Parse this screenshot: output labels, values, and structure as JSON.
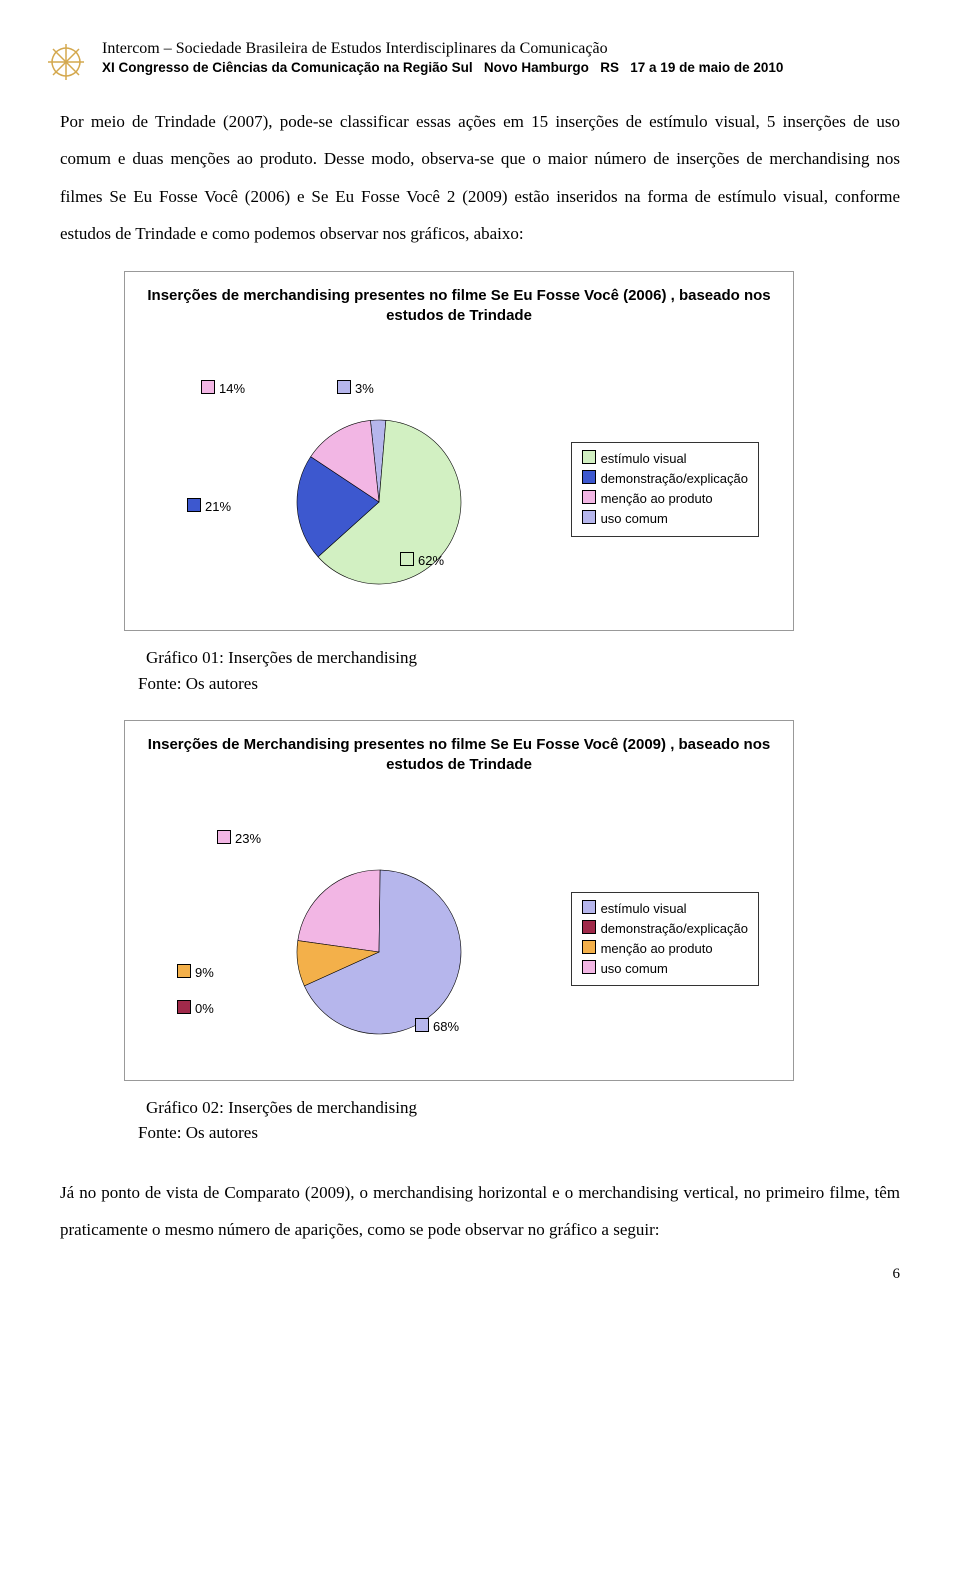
{
  "header": {
    "line1": "Intercom – Sociedade Brasileira de Estudos Interdisciplinares da Comunicação",
    "line2_a": "XI Congresso de Ciências da Comunicação na Região Sul",
    "line2_b": "Novo Hamburgo",
    "line2_c": "RS",
    "line2_d": "17 a 19 de maio de 2010",
    "logo_color": "#d4a84e"
  },
  "para1": "Por meio de Trindade (2007), pode-se classificar essas ações em 15 inserções de estímulo visual, 5 inserções de uso comum e duas menções ao produto. Desse modo, observa-se que o maior número de inserções de merchandising nos filmes Se Eu Fosse Você (2006) e Se Eu Fosse Você 2 (2009) estão inseridos na forma de estímulo visual, conforme estudos de Trindade e como podemos observar nos gráficos, abaixo:",
  "chart1": {
    "title": "Inserções de merchandising presentes no filme Se Eu Fosse Você (2006) , baseado nos estudos de Trindade",
    "slices": [
      {
        "label": "62%",
        "value": 62,
        "color": "#d2f0c2",
        "legend": "estímulo visual"
      },
      {
        "label": "21%",
        "value": 21,
        "color": "#3d58cf",
        "legend": "demonstração/explicação"
      },
      {
        "label": "14%",
        "value": 14,
        "color": "#f2b6e4",
        "legend": "menção ao produto"
      },
      {
        "label": "3%",
        "value": 3,
        "color": "#b6b6ec",
        "legend": "uso comum"
      }
    ],
    "caption": "Gráfico 01: Inserções de merchandising",
    "source": "Fonte: Os autores"
  },
  "chart2": {
    "title": "Inserções de Merchandising presentes no filme Se Eu Fosse Você (2009) , baseado nos estudos de Trindade",
    "slices": [
      {
        "label": "68%",
        "value": 68,
        "color": "#b6b6ec",
        "legend": "estímulo visual"
      },
      {
        "label": "0%",
        "value": 0,
        "color": "#a02a4a",
        "legend": "demonstração/explicação"
      },
      {
        "label": "9%",
        "value": 9,
        "color": "#f3b04a",
        "legend": "menção ao produto"
      },
      {
        "label": "23%",
        "value": 23,
        "color": "#f2b6e4",
        "legend": "uso comum"
      }
    ],
    "caption": "Gráfico 02: Inserções de merchandising",
    "source": "Fonte: Os autores"
  },
  "para2": "Já no ponto de vista de Comparato (2009), o merchandising horizontal e o merchandising vertical, no primeiro filme, têm praticamente o mesmo número de aparições, como se pode observar no gráfico a seguir:",
  "page_number": "6",
  "style": {
    "chart_border_color": "#999999",
    "body_font_size": 17,
    "title_font_size": 15,
    "label_font_size": 13
  }
}
